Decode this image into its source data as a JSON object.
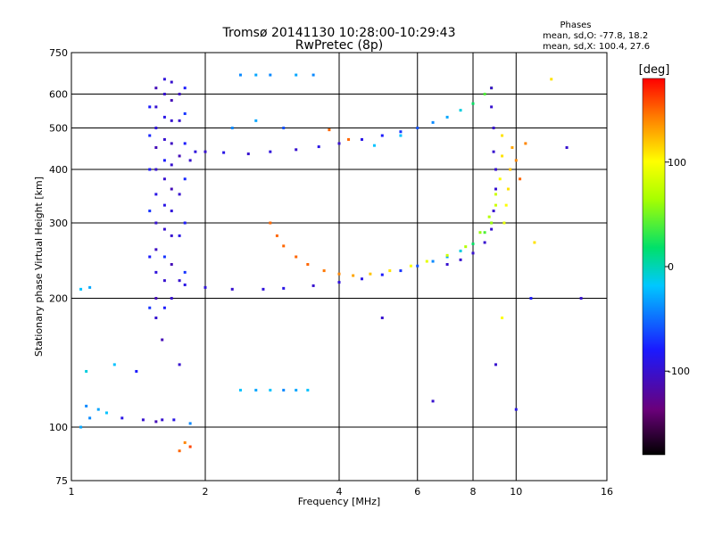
{
  "chart_data": {
    "type": "scatter",
    "title": "Tromsø 20141130 10:28:00-10:29:43",
    "subtitle": "RwPretec (8p)",
    "xlabel": "Frequency [MHz]",
    "ylabel": "Stationary phase Virtual Height [km]",
    "x_scale": "log",
    "y_scale": "log",
    "xlim": [
      1,
      16
    ],
    "ylim": [
      75,
      750
    ],
    "x_ticks": [
      1,
      2,
      4,
      6,
      8,
      10,
      16
    ],
    "y_ticks": [
      75,
      100,
      200,
      300,
      400,
      500,
      600,
      750
    ],
    "grid": true,
    "stats": {
      "heading": "Phases",
      "line_o": "mean, sd,O: -77.8, 18.2",
      "line_x": "mean, sd,X: 100.4, 27.6"
    },
    "colorbar": {
      "label": "[deg]",
      "ticks": [
        100,
        0,
        -100
      ],
      "range": [
        -180,
        180
      ],
      "position": "right"
    },
    "series": [
      {
        "points": [
          [
            1.55,
            180,
            -100
          ],
          [
            1.55,
            200,
            -110
          ],
          [
            1.55,
            230,
            -95
          ],
          [
            1.55,
            260,
            -105
          ],
          [
            1.55,
            300,
            -100
          ],
          [
            1.55,
            350,
            -90
          ],
          [
            1.55,
            400,
            -100
          ],
          [
            1.55,
            450,
            -110
          ],
          [
            1.55,
            500,
            -95
          ],
          [
            1.55,
            560,
            -100
          ],
          [
            1.55,
            620,
            -110
          ],
          [
            1.62,
            190,
            -80
          ],
          [
            1.62,
            220,
            -100
          ],
          [
            1.62,
            250,
            -70
          ],
          [
            1.62,
            290,
            -100
          ],
          [
            1.62,
            330,
            -90
          ],
          [
            1.62,
            380,
            -100
          ],
          [
            1.62,
            420,
            -80
          ],
          [
            1.62,
            470,
            -100
          ],
          [
            1.62,
            530,
            -90
          ],
          [
            1.62,
            600,
            -100
          ],
          [
            1.62,
            650,
            -95
          ],
          [
            1.68,
            200,
            -100
          ],
          [
            1.68,
            240,
            -110
          ],
          [
            1.68,
            280,
            -100
          ],
          [
            1.68,
            320,
            -95
          ],
          [
            1.68,
            360,
            -110
          ],
          [
            1.68,
            410,
            -100
          ],
          [
            1.68,
            460,
            -105
          ],
          [
            1.68,
            520,
            -100
          ],
          [
            1.68,
            580,
            -110
          ],
          [
            1.68,
            640,
            -100
          ],
          [
            1.5,
            190,
            -70
          ],
          [
            1.5,
            250,
            -80
          ],
          [
            1.5,
            320,
            -70
          ],
          [
            1.5,
            400,
            -80
          ],
          [
            1.5,
            480,
            -75
          ],
          [
            1.5,
            560,
            -80
          ],
          [
            1.75,
            220,
            -100
          ],
          [
            1.75,
            280,
            -90
          ],
          [
            1.75,
            350,
            -100
          ],
          [
            1.75,
            430,
            -110
          ],
          [
            1.75,
            520,
            -100
          ],
          [
            1.75,
            600,
            -105
          ],
          [
            1.8,
            230,
            -70
          ],
          [
            1.8,
            300,
            -80
          ],
          [
            1.8,
            380,
            -75
          ],
          [
            1.8,
            460,
            -80
          ],
          [
            1.8,
            540,
            -70
          ],
          [
            1.8,
            620,
            -80
          ],
          [
            1.85,
            420,
            -100
          ],
          [
            1.9,
            440,
            -95
          ],
          [
            2.0,
            440,
            -100
          ],
          [
            2.2,
            438,
            -90
          ],
          [
            2.5,
            435,
            -100
          ],
          [
            2.8,
            440,
            -95
          ],
          [
            3.2,
            445,
            -100
          ],
          [
            3.6,
            452,
            -90
          ],
          [
            4.0,
            460,
            -100
          ],
          [
            4.5,
            470,
            -90
          ],
          [
            5.0,
            480,
            -80
          ],
          [
            5.5,
            490,
            -70
          ],
          [
            6.0,
            500,
            -60
          ],
          [
            6.5,
            515,
            -40
          ],
          [
            7.0,
            530,
            -30
          ],
          [
            7.5,
            550,
            -10
          ],
          [
            8.0,
            570,
            20
          ],
          [
            8.5,
            600,
            40
          ],
          [
            8.8,
            620,
            60
          ],
          [
            1.8,
            215,
            -90
          ],
          [
            2.0,
            212,
            -95
          ],
          [
            2.3,
            210,
            -100
          ],
          [
            2.7,
            210,
            -95
          ],
          [
            3.0,
            211,
            -90
          ],
          [
            3.5,
            214,
            -100
          ],
          [
            4.0,
            218,
            -95
          ],
          [
            4.5,
            222,
            -90
          ],
          [
            5.0,
            227,
            -80
          ],
          [
            5.5,
            232,
            -70
          ],
          [
            6.0,
            238,
            -60
          ],
          [
            6.5,
            244,
            -40
          ],
          [
            7.0,
            250,
            -30
          ],
          [
            7.5,
            258,
            -10
          ],
          [
            8.0,
            268,
            20
          ],
          [
            8.5,
            285,
            40
          ],
          [
            8.8,
            300,
            60
          ],
          [
            9.0,
            330,
            80
          ],
          [
            9.2,
            380,
            100
          ],
          [
            9.3,
            430,
            110
          ],
          [
            9.3,
            480,
            110
          ],
          [
            2.8,
            300,
            150
          ],
          [
            2.9,
            280,
            150
          ],
          [
            3.0,
            265,
            150
          ],
          [
            3.2,
            250,
            150
          ],
          [
            3.4,
            240,
            150
          ],
          [
            3.7,
            232,
            145
          ],
          [
            4.0,
            228,
            140
          ],
          [
            4.3,
            226,
            130
          ],
          [
            4.7,
            228,
            120
          ],
          [
            5.2,
            232,
            110
          ],
          [
            5.8,
            238,
            100
          ],
          [
            6.3,
            244,
            90
          ],
          [
            7.0,
            252,
            80
          ],
          [
            7.7,
            264,
            70
          ],
          [
            8.3,
            285,
            60
          ],
          [
            8.7,
            310,
            70
          ],
          [
            9.0,
            350,
            80
          ],
          [
            8.8,
            620,
            -100
          ],
          [
            8.8,
            560,
            -100
          ],
          [
            8.9,
            500,
            -100
          ],
          [
            8.9,
            440,
            -100
          ],
          [
            9.0,
            400,
            -100
          ],
          [
            9.0,
            360,
            -100
          ],
          [
            8.9,
            320,
            -100
          ],
          [
            8.8,
            290,
            -100
          ],
          [
            8.5,
            270,
            -100
          ],
          [
            8.0,
            255,
            -100
          ],
          [
            7.5,
            246,
            -100
          ],
          [
            7.0,
            240,
            -100
          ],
          [
            9.8,
            450,
            130
          ],
          [
            9.7,
            400,
            120
          ],
          [
            9.6,
            360,
            110
          ],
          [
            9.5,
            330,
            100
          ],
          [
            9.4,
            300,
            90
          ],
          [
            10.0,
            420,
            140
          ],
          [
            10.2,
            380,
            150
          ],
          [
            1.05,
            100,
            -30
          ],
          [
            1.1,
            105,
            -40
          ],
          [
            1.15,
            110,
            -30
          ],
          [
            1.2,
            108,
            -20
          ],
          [
            1.08,
            112,
            -40
          ],
          [
            1.3,
            105,
            -90
          ],
          [
            1.45,
            104,
            -100
          ],
          [
            1.55,
            103,
            -110
          ],
          [
            1.6,
            104,
            -100
          ],
          [
            1.7,
            104,
            -90
          ],
          [
            1.85,
            102,
            -40
          ],
          [
            1.05,
            210,
            -20
          ],
          [
            1.1,
            212,
            -30
          ],
          [
            1.08,
            135,
            -10
          ],
          [
            1.25,
            140,
            -20
          ],
          [
            1.4,
            135,
            -80
          ],
          [
            1.6,
            160,
            -110
          ],
          [
            1.75,
            140,
            -100
          ],
          [
            2.4,
            122,
            -20
          ],
          [
            2.6,
            122,
            -30
          ],
          [
            2.8,
            122,
            -20
          ],
          [
            3.0,
            122,
            -40
          ],
          [
            3.2,
            122,
            -30
          ],
          [
            3.4,
            122,
            -20
          ],
          [
            1.75,
            88,
            150
          ],
          [
            1.8,
            92,
            140
          ],
          [
            1.85,
            90,
            160
          ],
          [
            2.4,
            665,
            -40
          ],
          [
            2.6,
            665,
            -30
          ],
          [
            2.8,
            665,
            -40
          ],
          [
            3.2,
            665,
            -30
          ],
          [
            3.5,
            665,
            -40
          ],
          [
            2.3,
            500,
            -40
          ],
          [
            2.6,
            520,
            -30
          ],
          [
            3.0,
            500,
            -60
          ],
          [
            3.8,
            495,
            150
          ],
          [
            4.2,
            470,
            150
          ],
          [
            4.8,
            455,
            -20
          ],
          [
            5.5,
            480,
            -20
          ],
          [
            12.0,
            650,
            110
          ],
          [
            10.5,
            460,
            140
          ],
          [
            11.0,
            270,
            110
          ],
          [
            10.8,
            200,
            -80
          ],
          [
            9.3,
            180,
            100
          ],
          [
            13.0,
            450,
            -100
          ],
          [
            14.0,
            200,
            -100
          ],
          [
            5.0,
            180,
            -100
          ],
          [
            6.5,
            115,
            -100
          ],
          [
            9.0,
            140,
            -100
          ],
          [
            10.0,
            110,
            -90
          ]
        ]
      }
    ]
  }
}
